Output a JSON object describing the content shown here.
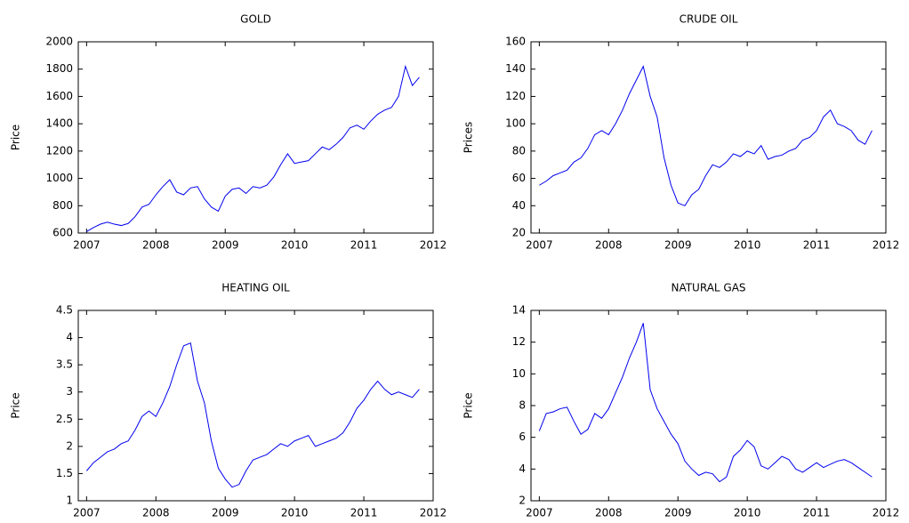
{
  "chart_data": [
    {
      "type": "line",
      "title": "GOLD",
      "y_label": "Price",
      "color": "#0000ee",
      "x": [
        2007.0,
        2007.1,
        2007.2,
        2007.3,
        2007.4,
        2007.5,
        2007.6,
        2007.7,
        2007.8,
        2007.9,
        2008.0,
        2008.1,
        2008.2,
        2008.3,
        2008.4,
        2008.5,
        2008.6,
        2008.7,
        2008.8,
        2008.9,
        2009.0,
        2009.1,
        2009.2,
        2009.3,
        2009.4,
        2009.5,
        2009.6,
        2009.7,
        2009.8,
        2009.9,
        2010.0,
        2010.1,
        2010.2,
        2010.3,
        2010.4,
        2010.5,
        2010.6,
        2010.7,
        2010.8,
        2010.9,
        2011.0,
        2011.1,
        2011.2,
        2011.3,
        2011.4,
        2011.5,
        2011.6,
        2011.7,
        2011.8
      ],
      "values": [
        610,
        640,
        665,
        680,
        665,
        655,
        670,
        720,
        790,
        810,
        880,
        940,
        990,
        900,
        880,
        930,
        940,
        850,
        790,
        760,
        870,
        920,
        930,
        890,
        940,
        930,
        950,
        1010,
        1100,
        1180,
        1110,
        1120,
        1130,
        1180,
        1230,
        1210,
        1250,
        1300,
        1370,
        1390,
        1360,
        1420,
        1470,
        1500,
        1520,
        1600,
        1820,
        1680,
        1740
      ],
      "xlim": [
        2006.88,
        2012
      ],
      "xticks": [
        2007,
        2008,
        2009,
        2010,
        2011,
        2012
      ],
      "ylim": [
        600,
        2000
      ],
      "yticks": [
        600,
        800,
        1000,
        1200,
        1400,
        1600,
        1800,
        2000
      ]
    },
    {
      "type": "line",
      "title": "CRUDE OIL",
      "y_label": "Prices",
      "color": "#0000ee",
      "x": [
        2007.0,
        2007.1,
        2007.2,
        2007.3,
        2007.4,
        2007.5,
        2007.6,
        2007.7,
        2007.8,
        2007.9,
        2008.0,
        2008.1,
        2008.2,
        2008.3,
        2008.4,
        2008.5,
        2008.6,
        2008.7,
        2008.8,
        2008.9,
        2009.0,
        2009.1,
        2009.2,
        2009.3,
        2009.4,
        2009.5,
        2009.6,
        2009.7,
        2009.8,
        2009.9,
        2010.0,
        2010.1,
        2010.2,
        2010.3,
        2010.4,
        2010.5,
        2010.6,
        2010.7,
        2010.8,
        2010.9,
        2011.0,
        2011.1,
        2011.2,
        2011.3,
        2011.4,
        2011.5,
        2011.6,
        2011.7,
        2011.8
      ],
      "values": [
        55,
        58,
        62,
        64,
        66,
        72,
        75,
        82,
        92,
        95,
        92,
        100,
        110,
        122,
        132,
        142,
        120,
        105,
        75,
        55,
        42,
        40,
        48,
        52,
        62,
        70,
        68,
        72,
        78,
        76,
        80,
        78,
        84,
        74,
        76,
        77,
        80,
        82,
        88,
        90,
        95,
        105,
        110,
        100,
        98,
        95,
        88,
        85,
        95
      ],
      "xlim": [
        2006.88,
        2012
      ],
      "xticks": [
        2007,
        2008,
        2009,
        2010,
        2011,
        2012
      ],
      "ylim": [
        20,
        160
      ],
      "yticks": [
        20,
        40,
        60,
        80,
        100,
        120,
        140,
        160
      ]
    },
    {
      "type": "line",
      "title": "HEATING OIL",
      "y_label": "Price",
      "color": "#0000ee",
      "x": [
        2007.0,
        2007.1,
        2007.2,
        2007.3,
        2007.4,
        2007.5,
        2007.6,
        2007.7,
        2007.8,
        2007.9,
        2008.0,
        2008.1,
        2008.2,
        2008.3,
        2008.4,
        2008.5,
        2008.6,
        2008.7,
        2008.8,
        2008.9,
        2009.0,
        2009.1,
        2009.2,
        2009.3,
        2009.4,
        2009.5,
        2009.6,
        2009.7,
        2009.8,
        2009.9,
        2010.0,
        2010.1,
        2010.2,
        2010.3,
        2010.4,
        2010.5,
        2010.6,
        2010.7,
        2010.8,
        2010.9,
        2011.0,
        2011.1,
        2011.2,
        2011.3,
        2011.4,
        2011.5,
        2011.6,
        2011.7,
        2011.8
      ],
      "values": [
        1.55,
        1.7,
        1.8,
        1.9,
        1.95,
        2.05,
        2.1,
        2.3,
        2.55,
        2.65,
        2.55,
        2.8,
        3.1,
        3.5,
        3.85,
        3.9,
        3.2,
        2.8,
        2.1,
        1.6,
        1.4,
        1.25,
        1.3,
        1.55,
        1.75,
        1.8,
        1.85,
        1.95,
        2.05,
        2.0,
        2.1,
        2.15,
        2.2,
        2.0,
        2.05,
        2.1,
        2.15,
        2.25,
        2.45,
        2.7,
        2.85,
        3.05,
        3.2,
        3.05,
        2.95,
        3.0,
        2.95,
        2.9,
        3.05
      ],
      "xlim": [
        2006.88,
        2012
      ],
      "xticks": [
        2007,
        2008,
        2009,
        2010,
        2011,
        2012
      ],
      "ylim": [
        1,
        4.5
      ],
      "yticks": [
        1,
        1.5,
        2,
        2.5,
        3,
        3.5,
        4,
        4.5
      ]
    },
    {
      "type": "line",
      "title": "NATURAL GAS",
      "y_label": "Price",
      "color": "#0000ee",
      "x": [
        2007.0,
        2007.1,
        2007.2,
        2007.3,
        2007.4,
        2007.5,
        2007.6,
        2007.7,
        2007.8,
        2007.9,
        2008.0,
        2008.1,
        2008.2,
        2008.3,
        2008.4,
        2008.5,
        2008.6,
        2008.7,
        2008.8,
        2008.9,
        2009.0,
        2009.1,
        2009.2,
        2009.3,
        2009.4,
        2009.5,
        2009.6,
        2009.7,
        2009.8,
        2009.9,
        2010.0,
        2010.1,
        2010.2,
        2010.3,
        2010.4,
        2010.5,
        2010.6,
        2010.7,
        2010.8,
        2010.9,
        2011.0,
        2011.1,
        2011.2,
        2011.3,
        2011.4,
        2011.5,
        2011.6,
        2011.7,
        2011.8
      ],
      "values": [
        6.4,
        7.5,
        7.6,
        7.8,
        7.9,
        7.0,
        6.2,
        6.5,
        7.5,
        7.2,
        7.8,
        8.8,
        9.8,
        11.0,
        12.0,
        13.2,
        9.0,
        7.8,
        7.0,
        6.2,
        5.6,
        4.5,
        4.0,
        3.6,
        3.8,
        3.7,
        3.2,
        3.5,
        4.8,
        5.2,
        5.8,
        5.4,
        4.2,
        4.0,
        4.4,
        4.8,
        4.6,
        4.0,
        3.8,
        4.1,
        4.4,
        4.1,
        4.3,
        4.5,
        4.6,
        4.4,
        4.1,
        3.8,
        3.5
      ],
      "xlim": [
        2006.88,
        2012
      ],
      "xticks": [
        2007,
        2008,
        2009,
        2010,
        2011,
        2012
      ],
      "ylim": [
        2,
        14
      ],
      "yticks": [
        2,
        4,
        6,
        8,
        10,
        12,
        14
      ]
    }
  ]
}
